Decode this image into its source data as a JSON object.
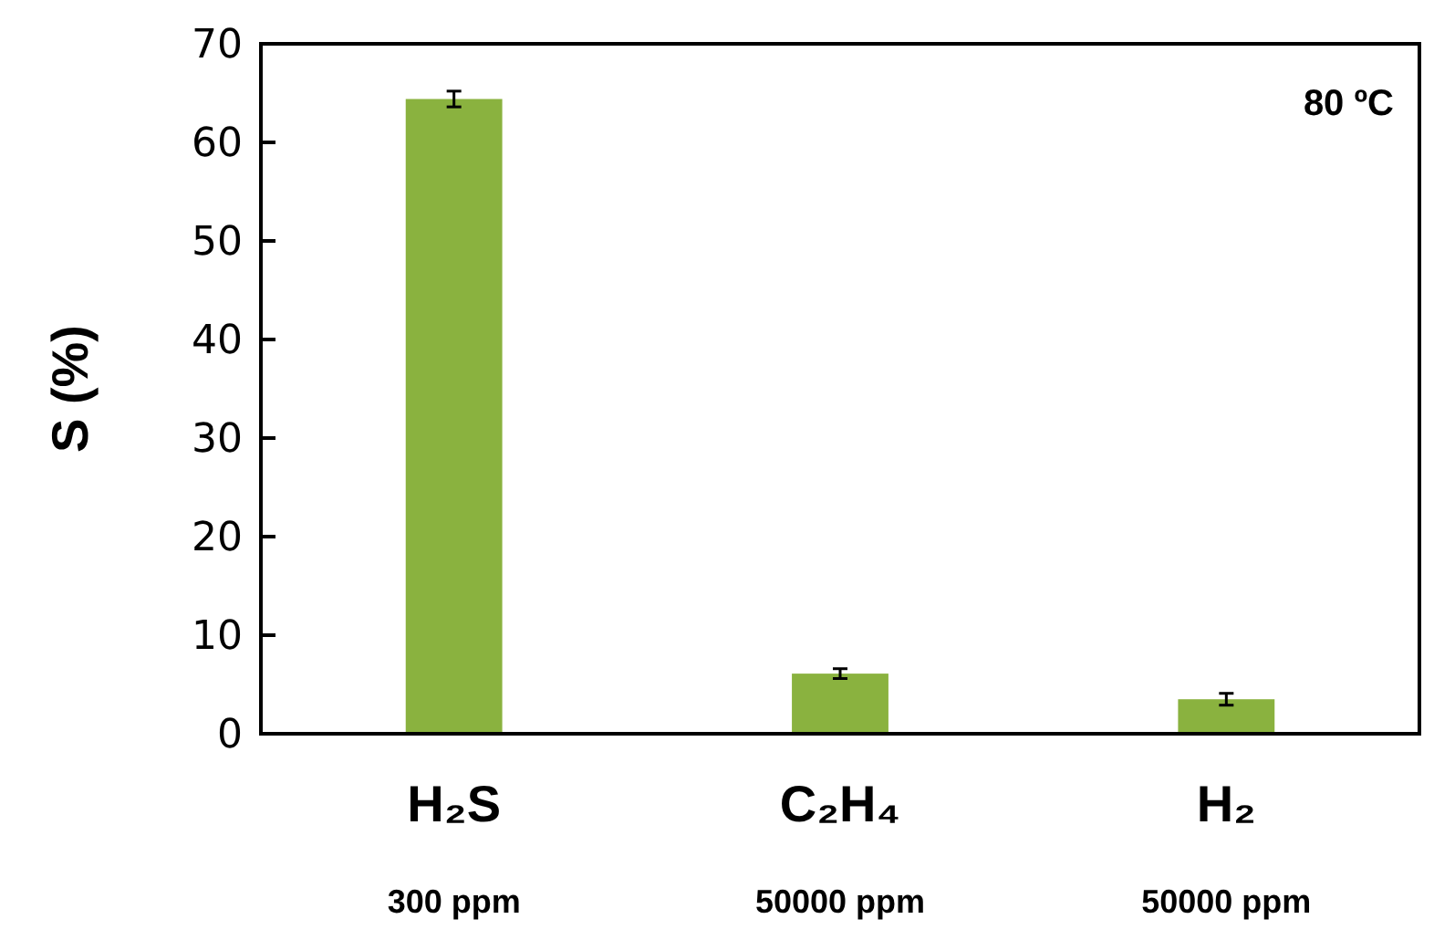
{
  "chart_data": {
    "type": "bar",
    "ylabel": "S (%)",
    "categories": [
      "H₂S",
      "C₂H₄",
      "H₂"
    ],
    "values": [
      64.4,
      6.1,
      3.5
    ],
    "errors": [
      0.8,
      0.5,
      0.6
    ],
    "color": "#8ab23f",
    "ylim": [
      0,
      70
    ],
    "yticks": [
      0,
      10,
      20,
      30,
      40,
      50,
      60,
      70
    ],
    "grid": false,
    "annotations": [
      "80 ºC",
      "300 ppm",
      "50000 ppm",
      "50000 ppm"
    ]
  }
}
